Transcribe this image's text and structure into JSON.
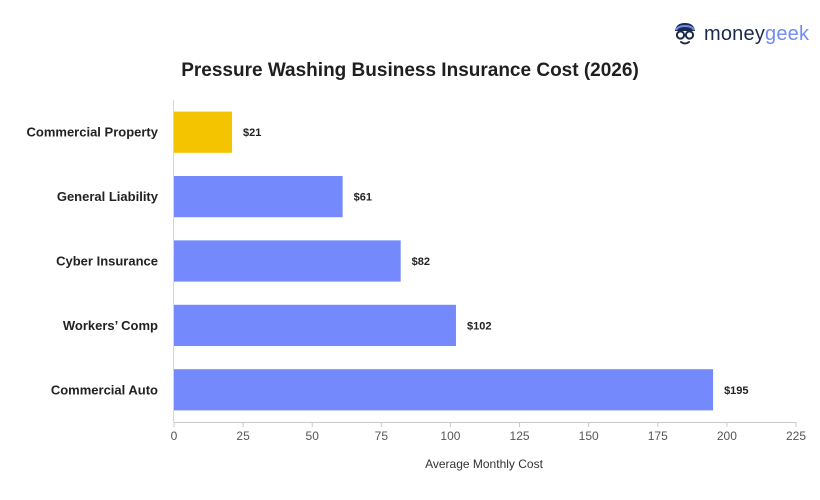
{
  "brand": {
    "money": "money",
    "geek": "geek",
    "icon": "geek-face-icon"
  },
  "chart_data": {
    "type": "bar",
    "orientation": "horizontal",
    "title": "Pressure Washing Business Insurance Cost (2026)",
    "xlabel": "Average Monthly Cost",
    "ylabel": "",
    "categories": [
      "Commercial Property",
      "General Liability",
      "Cyber Insurance",
      "Workers’ Comp",
      "Commercial Auto"
    ],
    "values": [
      21,
      61,
      82,
      102,
      195
    ],
    "value_labels": [
      "$21",
      "$61",
      "$82",
      "$102",
      "$195"
    ],
    "colors": [
      "#f5c400",
      "#7489fb",
      "#7489fb",
      "#7489fb",
      "#7489fb"
    ],
    "xlim": [
      0,
      225
    ],
    "ticks": [
      0,
      25,
      50,
      75,
      100,
      125,
      150,
      175,
      200,
      225
    ],
    "grid": false,
    "legend": "none"
  }
}
